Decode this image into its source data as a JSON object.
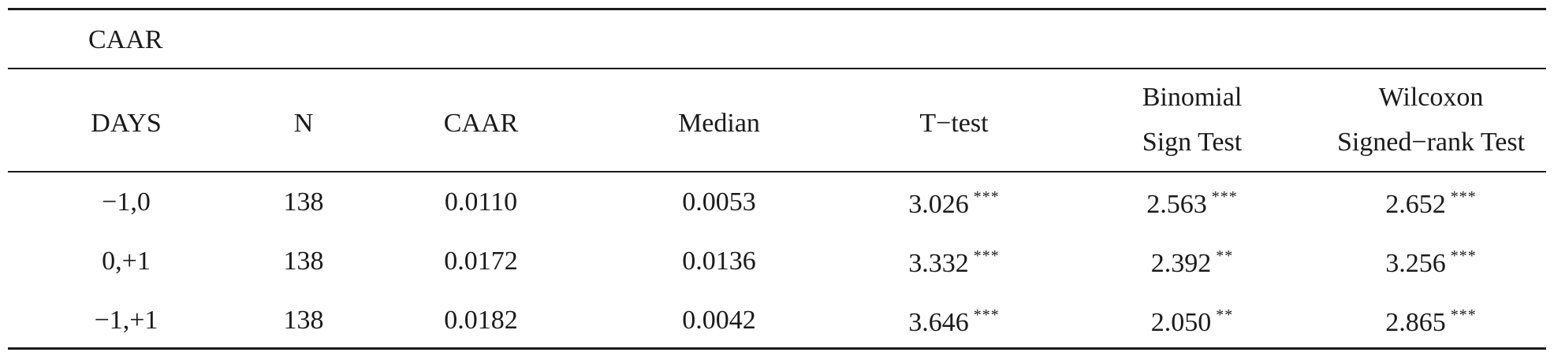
{
  "table": {
    "caption": "CAAR",
    "headers": {
      "days": "DAYS",
      "n": "N",
      "caar": "CAAR",
      "median": "Median",
      "ttest": "T−test",
      "binomial_line1": "Binomial",
      "binomial_line2": "Sign Test",
      "wilcoxon_line1": "Wilcoxon",
      "wilcoxon_line2": "Signed−rank Test"
    },
    "rows": [
      {
        "days": "−1,0",
        "n": "138",
        "caar": "0.0110",
        "median": "0.0053",
        "ttest": "3.026",
        "ttest_sig": "***",
        "binomial": "2.563",
        "binomial_sig": "***",
        "wilcoxon": "2.652",
        "wilcoxon_sig": "***"
      },
      {
        "days": "0,+1",
        "n": "138",
        "caar": "0.0172",
        "median": "0.0136",
        "ttest": "3.332",
        "ttest_sig": "***",
        "binomial": "2.392",
        "binomial_sig": "**",
        "wilcoxon": "3.256",
        "wilcoxon_sig": "***"
      },
      {
        "days": "−1,+1",
        "n": "138",
        "caar": "0.0182",
        "median": "0.0042",
        "ttest": "3.646",
        "ttest_sig": "***",
        "binomial": "2.050",
        "binomial_sig": "**",
        "wilcoxon": "2.865",
        "wilcoxon_sig": "***"
      }
    ]
  }
}
